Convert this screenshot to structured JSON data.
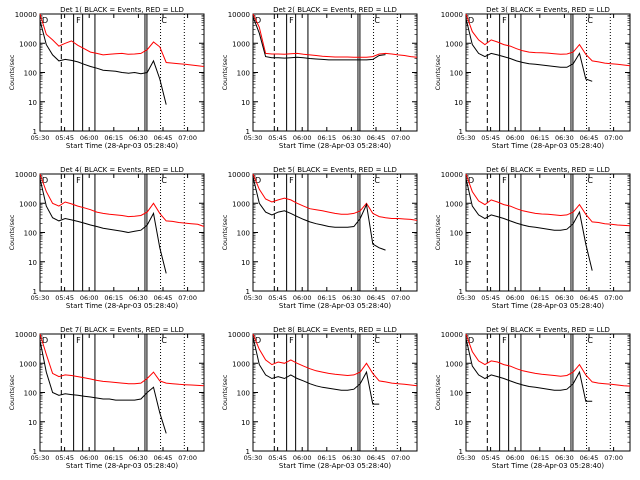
{
  "chart_data": {
    "type": "line",
    "layout": "3x3 grid",
    "x_tick_labels": [
      "05:30",
      "05:45",
      "06:00",
      "06:15",
      "06:30",
      "06:45",
      "07:00"
    ],
    "y_tick_labels": [
      "1",
      "10",
      "100",
      "1000",
      "10000"
    ],
    "y_scale": "log",
    "ylim": [
      1,
      10000
    ],
    "xlabel": "Start Time (28-Apr-03 05:28:40)",
    "ylabel": "Counts/sec",
    "series_colors": {
      "events": "#000000",
      "lld": "#ff0000"
    },
    "marker_labels": {
      "start": "D",
      "mid": "F",
      "end": "C"
    },
    "panels": [
      {
        "title": "Det 1(  BLACK = Events, RED = LLD",
        "lld": [
          10000,
          2000,
          1300,
          800,
          1000,
          1200,
          850,
          650,
          500,
          450,
          400,
          420,
          440,
          450,
          420,
          430,
          450,
          600,
          1100,
          750,
          220,
          210,
          200,
          190,
          180,
          170,
          160
        ],
        "events": [
          6000,
          900,
          400,
          250,
          280,
          260,
          230,
          190,
          160,
          140,
          120,
          115,
          110,
          100,
          95,
          100,
          90,
          100,
          250,
          60,
          8,
          null,
          null,
          null,
          null,
          null,
          null
        ]
      },
      {
        "title": "Det 2(  BLACK = Events, RED = LLD",
        "lld": [
          10000,
          3500,
          450,
          430,
          430,
          420,
          440,
          450,
          420,
          400,
          380,
          360,
          350,
          340,
          340,
          340,
          330,
          330,
          330,
          350,
          430,
          450,
          430,
          400,
          380,
          350,
          330
        ],
        "events": [
          8000,
          2200,
          350,
          320,
          320,
          310,
          320,
          330,
          320,
          300,
          290,
          280,
          270,
          270,
          270,
          270,
          270,
          270,
          270,
          280,
          380,
          410,
          null,
          null,
          null,
          null,
          null
        ]
      },
      {
        "title": "Det 3(  BLACK = Events, RED = LLD",
        "lld": [
          10000,
          2500,
          1300,
          900,
          1300,
          1100,
          900,
          800,
          650,
          550,
          500,
          480,
          470,
          460,
          440,
          420,
          430,
          500,
          900,
          420,
          250,
          230,
          210,
          200,
          190,
          180,
          170
        ],
        "events": [
          7000,
          900,
          450,
          350,
          450,
          400,
          350,
          300,
          250,
          220,
          200,
          190,
          180,
          170,
          160,
          150,
          150,
          200,
          450,
          60,
          50,
          null,
          null,
          null,
          null,
          null,
          null
        ]
      },
      {
        "title": "Det 4(  BLACK = Events, RED = LLD",
        "lld": [
          10000,
          2500,
          1000,
          800,
          1100,
          950,
          800,
          700,
          600,
          500,
          450,
          420,
          400,
          380,
          350,
          360,
          380,
          500,
          1000,
          450,
          250,
          240,
          220,
          210,
          200,
          190,
          160
        ],
        "events": [
          7000,
          800,
          320,
          250,
          300,
          270,
          240,
          210,
          180,
          160,
          140,
          130,
          120,
          110,
          100,
          110,
          120,
          180,
          450,
          30,
          4,
          null,
          null,
          null,
          null,
          null,
          null
        ]
      },
      {
        "title": "Det 5(  BLACK = Events, RED = LLD",
        "lld": [
          10000,
          3000,
          1400,
          1100,
          1300,
          1500,
          1300,
          1000,
          800,
          650,
          600,
          550,
          500,
          450,
          420,
          420,
          450,
          550,
          1000,
          450,
          350,
          320,
          300,
          300,
          290,
          280,
          260
        ],
        "events": [
          8000,
          1000,
          500,
          400,
          500,
          550,
          450,
          350,
          280,
          230,
          200,
          180,
          160,
          150,
          150,
          150,
          160,
          300,
          900,
          40,
          30,
          25,
          null,
          null,
          null,
          null,
          null
        ]
      },
      {
        "title": "Det 6(  BLACK = Events, RED = LLD",
        "lld": [
          10000,
          2500,
          1200,
          900,
          1300,
          1100,
          900,
          800,
          650,
          550,
          500,
          450,
          430,
          420,
          400,
          380,
          400,
          500,
          900,
          420,
          230,
          220,
          200,
          190,
          180,
          175,
          170
        ],
        "events": [
          7000,
          800,
          400,
          300,
          400,
          350,
          300,
          250,
          210,
          180,
          160,
          150,
          140,
          130,
          120,
          120,
          130,
          200,
          500,
          40,
          5,
          null,
          null,
          null,
          null,
          null,
          null
        ]
      },
      {
        "title": "Det 7(  BLACK = Events, RED = LLD",
        "lld": [
          10000,
          2000,
          450,
          350,
          400,
          380,
          350,
          320,
          290,
          260,
          240,
          230,
          220,
          210,
          200,
          200,
          210,
          300,
          500,
          250,
          210,
          200,
          190,
          185,
          180,
          175,
          170
        ],
        "events": [
          6000,
          500,
          100,
          80,
          90,
          85,
          80,
          75,
          70,
          65,
          60,
          60,
          55,
          55,
          55,
          55,
          60,
          100,
          150,
          20,
          4,
          null,
          null,
          null,
          null,
          null,
          null
        ]
      },
      {
        "title": "Det 8(  BLACK = Events, RED = LLD",
        "lld": [
          10000,
          3000,
          1300,
          900,
          1100,
          1000,
          1300,
          1000,
          800,
          650,
          550,
          500,
          450,
          420,
          400,
          380,
          400,
          500,
          1000,
          450,
          250,
          230,
          210,
          200,
          190,
          180,
          170
        ],
        "events": [
          8000,
          900,
          400,
          300,
          350,
          300,
          400,
          300,
          250,
          200,
          170,
          150,
          140,
          130,
          120,
          120,
          130,
          200,
          500,
          40,
          40,
          null,
          null,
          null,
          null,
          null,
          null
        ]
      },
      {
        "title": "Det 9(  BLACK = Events, RED = LLD",
        "lld": [
          10000,
          2500,
          1200,
          900,
          1200,
          1100,
          900,
          800,
          650,
          550,
          500,
          450,
          420,
          400,
          380,
          360,
          380,
          500,
          900,
          400,
          230,
          210,
          200,
          190,
          180,
          170,
          165
        ],
        "events": [
          7000,
          800,
          400,
          300,
          400,
          350,
          300,
          250,
          210,
          180,
          160,
          150,
          140,
          130,
          120,
          120,
          130,
          200,
          500,
          50,
          50,
          null,
          null,
          null,
          null,
          null,
          null
        ]
      }
    ]
  }
}
